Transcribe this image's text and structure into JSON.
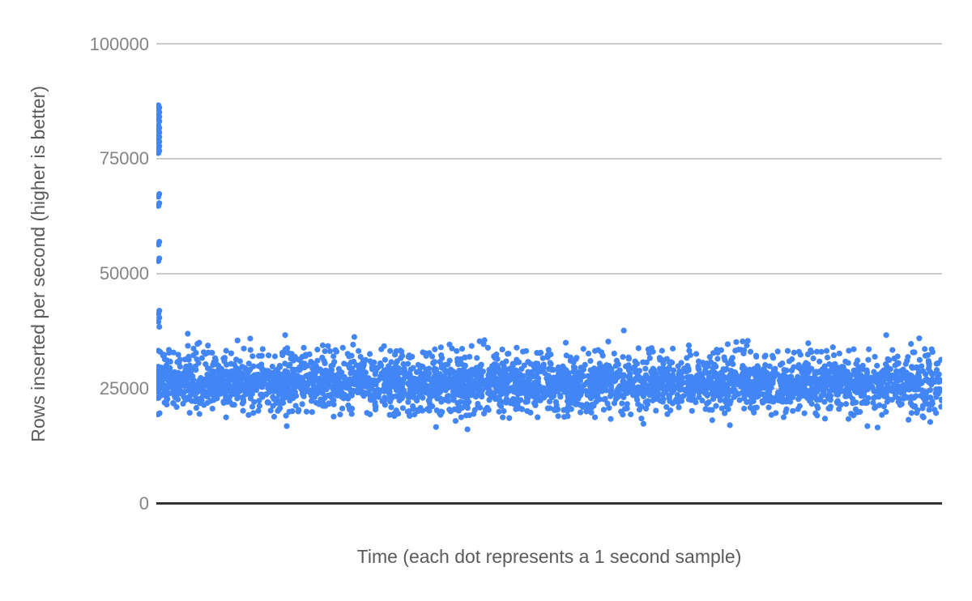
{
  "chart_data": {
    "type": "scatter",
    "xlabel": "Time (each dot represents a 1 second sample)",
    "ylabel": "Rows inserted per second (higher is better)",
    "ylim": [
      0,
      100000
    ],
    "yticks": [
      0,
      25000,
      50000,
      75000,
      100000
    ],
    "ytick_labels": [
      "0",
      "25000",
      "50000",
      "75000",
      "100000"
    ],
    "grid": true,
    "legend": "none",
    "point_color": "#4285f4",
    "point_radius": 3.6,
    "gridline_color": "#cccccc",
    "baseline_color": "#333333",
    "tick_text_color": "#848484",
    "title_text_color": "#5a5a5a",
    "startup_spike": {
      "x_frac": 0.0026,
      "values": [
        86700,
        86200,
        85700,
        85200,
        84700,
        84200,
        83700,
        83200,
        82300,
        81800,
        81300,
        80800,
        80300,
        79800,
        79300,
        78800,
        78300,
        77800,
        77300,
        76800,
        76300,
        67400,
        66800,
        65400,
        64800,
        57000,
        56400,
        53400,
        52800,
        42000,
        41400,
        40500,
        39600,
        38500
      ]
    },
    "steady_band": {
      "n_points": 3600,
      "seed": 1337,
      "x_range_frac": [
        0.0,
        1.0
      ],
      "approx_mean": 26100,
      "approx_core_range": [
        20100,
        32100
      ],
      "components": [
        {
          "weight": 0.9,
          "mean": 26100,
          "sd": 2500,
          "clip_lo": 18800,
          "clip_hi": 33400
        },
        {
          "weight": 0.06,
          "mean": 32800,
          "sd": 1200,
          "clip_lo": 30000,
          "clip_hi": 36200
        },
        {
          "weight": 0.04,
          "mean": 20200,
          "sd": 1100,
          "clip_lo": 16800,
          "clip_hi": 23000
        }
      ]
    },
    "outliers_high": [
      {
        "x_frac": 0.04,
        "value": 37000
      },
      {
        "x_frac": 0.164,
        "value": 36700
      },
      {
        "x_frac": 0.252,
        "value": 36300
      },
      {
        "x_frac": 0.595,
        "value": 37700
      },
      {
        "x_frac": 0.929,
        "value": 36700
      },
      {
        "x_frac": 0.971,
        "value": 36000
      }
    ],
    "outliers_low": [
      {
        "x_frac": 0.166,
        "value": 16900
      },
      {
        "x_frac": 0.356,
        "value": 16700
      },
      {
        "x_frac": 0.396,
        "value": 16200
      },
      {
        "x_frac": 0.62,
        "value": 17400
      },
      {
        "x_frac": 0.73,
        "value": 17100
      },
      {
        "x_frac": 0.905,
        "value": 16900
      },
      {
        "x_frac": 0.918,
        "value": 16600
      },
      {
        "x_frac": 0.985,
        "value": 17800
      }
    ]
  }
}
